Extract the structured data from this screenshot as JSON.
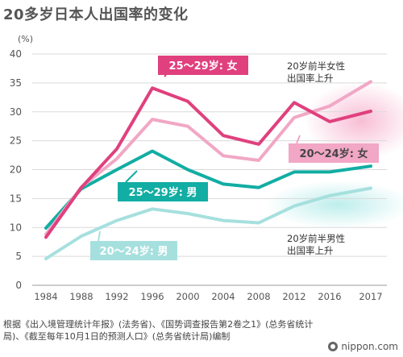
{
  "title": "20多岁日本人出国率的变化",
  "source": "根据《出入境管理统计年报》(法务省)、《国势调查报告第2卷之1》(总务省统计局)、《截至每年10月1日的预测人口》(总务省统计局)编制",
  "brand": "nippon.com",
  "colors": {
    "f2529": "#e0407e",
    "f2024": "#f1a7c5",
    "m2529": "#12ada3",
    "m2024": "#a6e0de",
    "grid": "#d9d9d9",
    "axis": "#555555"
  },
  "chart_data": {
    "type": "line",
    "yunit": "(%)",
    "ylim": [
      0,
      40
    ],
    "yticks": [
      0,
      5,
      10,
      15,
      20,
      25,
      30,
      35,
      40
    ],
    "x": [
      "1984",
      "1988",
      "1992",
      "1996",
      "2000",
      "2004",
      "2008",
      "2012",
      "2016",
      "2017"
    ],
    "grid": true,
    "series": [
      {
        "name": "20～24岁: 男",
        "color": "#a6e0de",
        "values": [
          4.6,
          8.5,
          11.2,
          13.2,
          12.4,
          11.2,
          10.8,
          13.7,
          15.5,
          16.8
        ]
      },
      {
        "name": "25～29岁: 男",
        "color": "#12ada3",
        "values": [
          9.9,
          16.7,
          20.0,
          23.2,
          20.0,
          17.5,
          16.9,
          19.6,
          19.6,
          20.6
        ]
      },
      {
        "name": "20～24岁: 女",
        "color": "#f1a7c5",
        "values": [
          8.8,
          17.0,
          21.9,
          28.7,
          27.5,
          22.4,
          21.6,
          29.0,
          31.0,
          35.2
        ]
      },
      {
        "name": "25～29岁: 女",
        "color": "#e0407e",
        "values": [
          8.3,
          16.9,
          23.6,
          34.1,
          31.8,
          25.9,
          24.4,
          31.6,
          28.3,
          30.1
        ]
      }
    ],
    "annotations": {
      "female_note": [
        "20岁前半女性",
        "出国率上升"
      ],
      "male_note": [
        "20岁前半男性",
        "出国率上升"
      ]
    }
  }
}
